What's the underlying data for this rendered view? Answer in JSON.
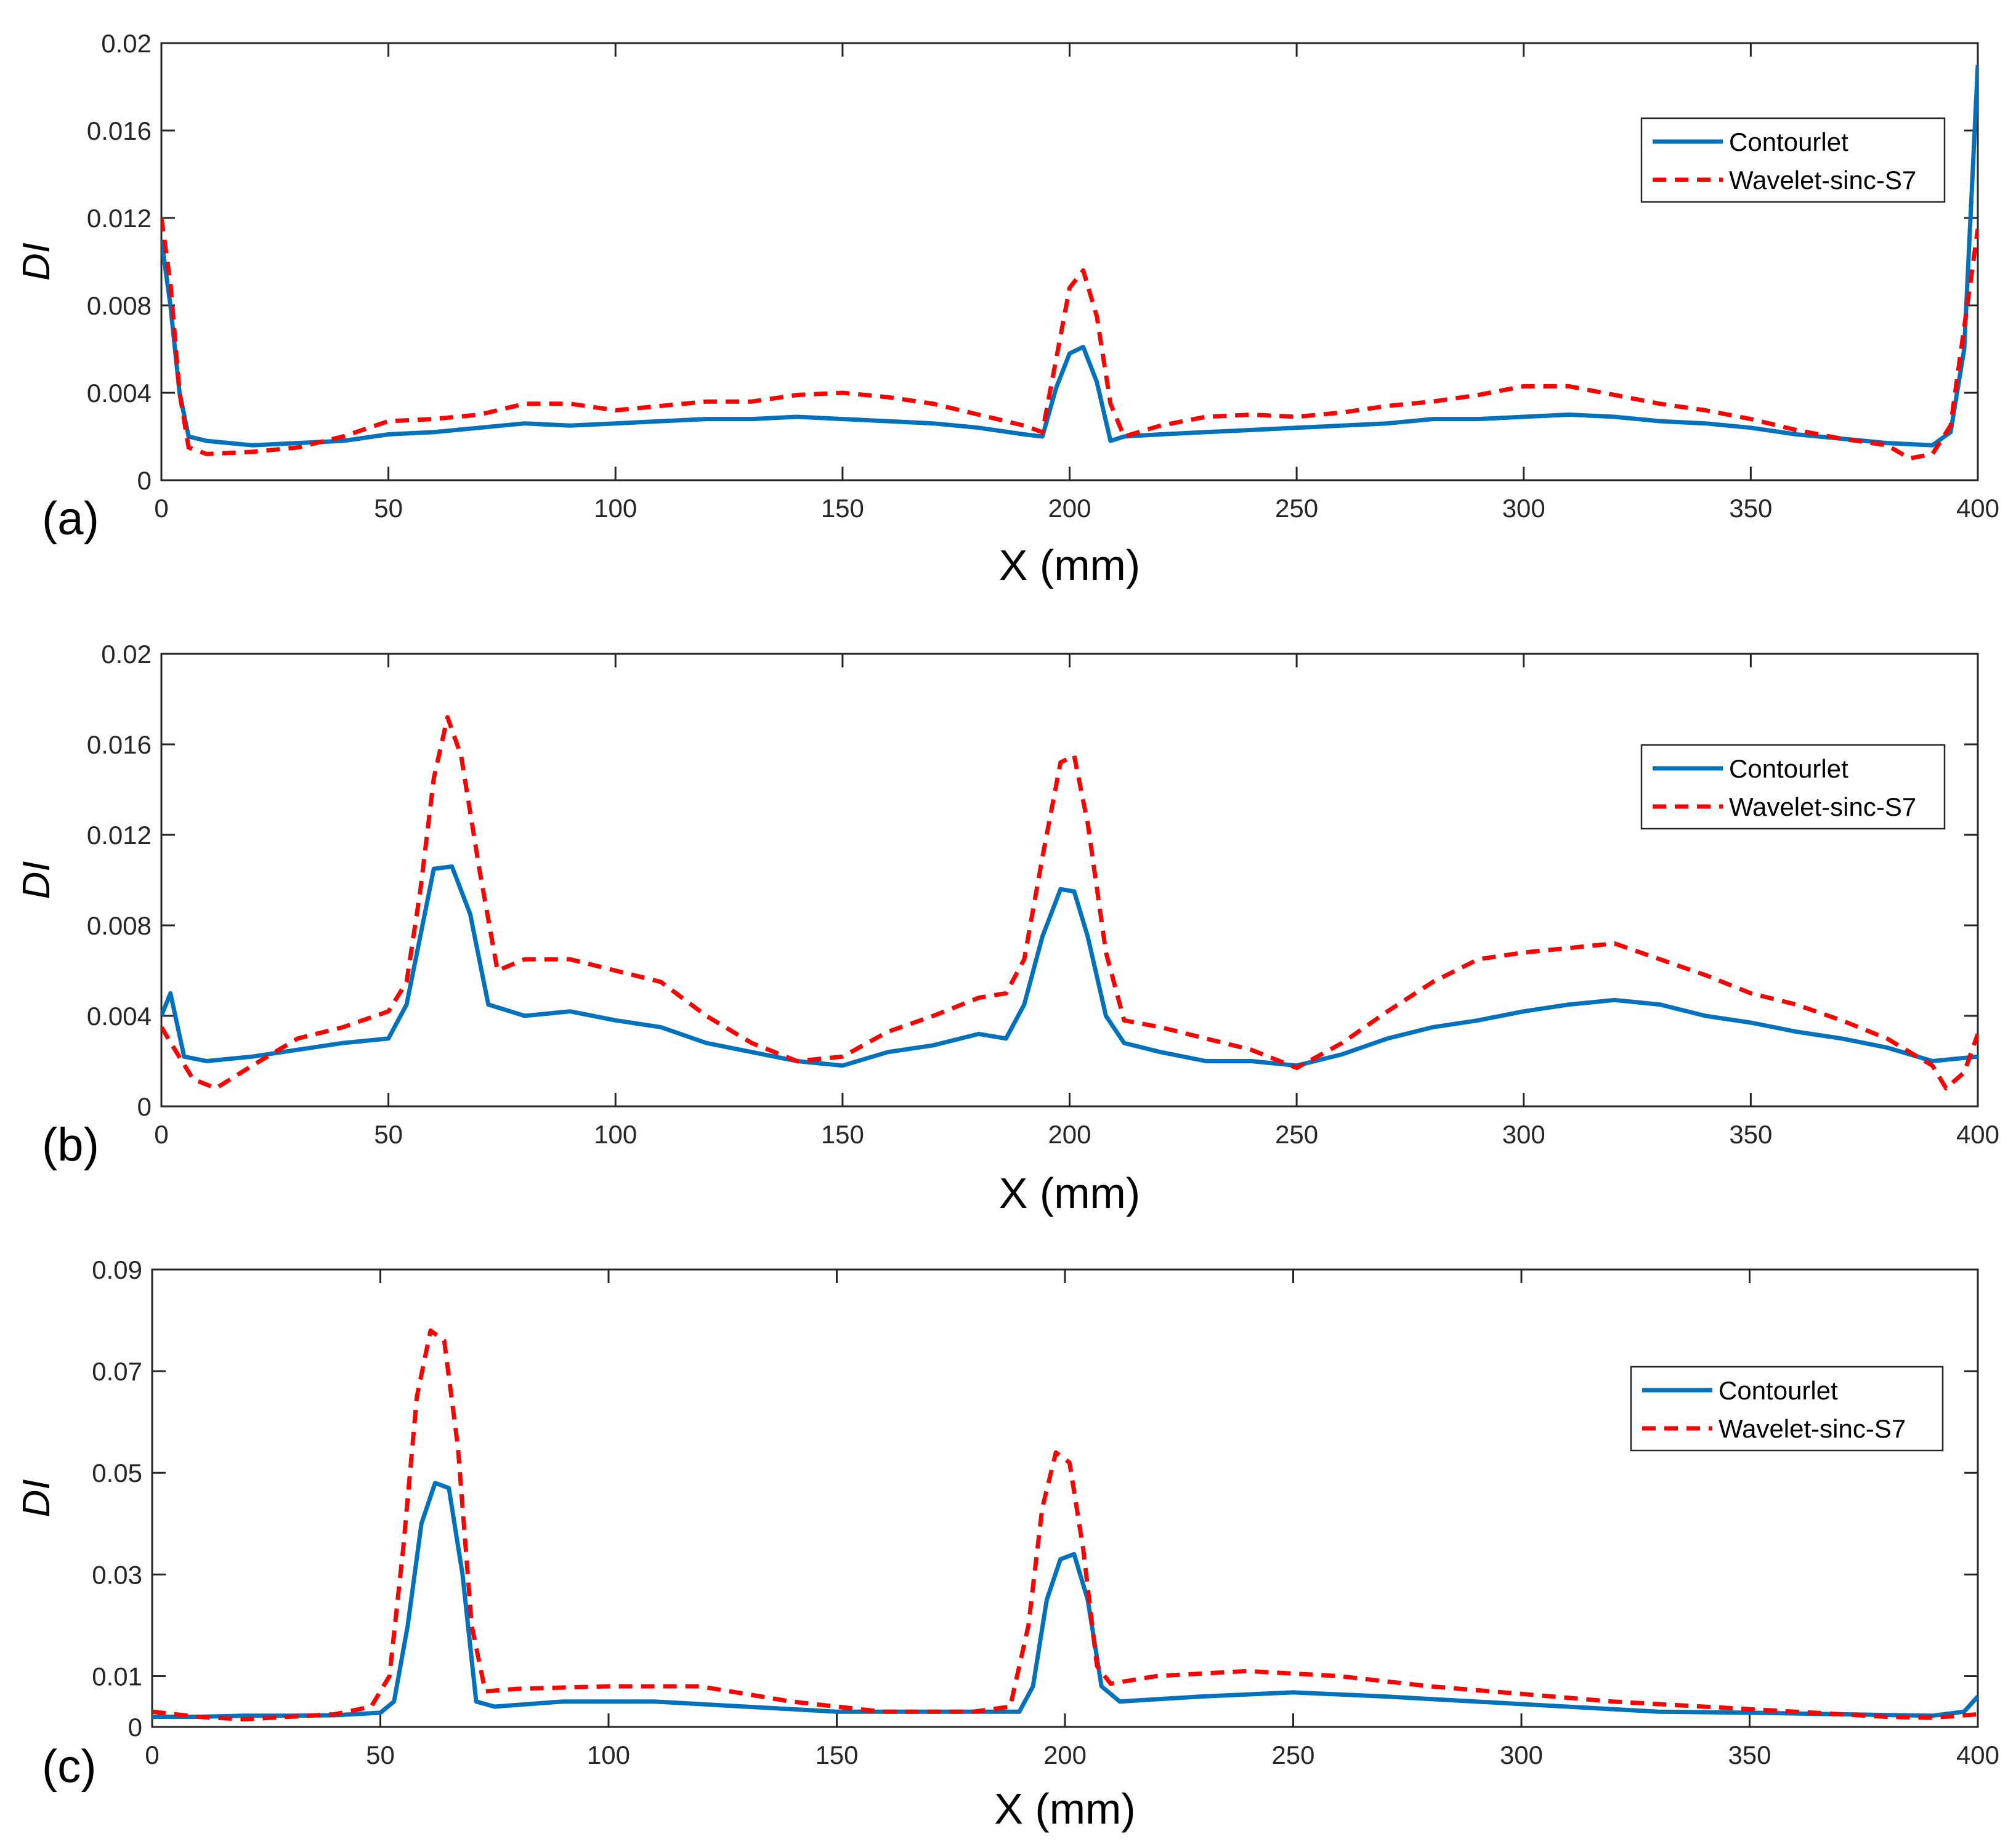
{
  "colors": {
    "contourlet": "#0072BD",
    "wavelet": "#FF0000",
    "axis": "#262626"
  },
  "chart_data": [
    {
      "type": "line",
      "panel_label": "(a)",
      "xlabel": "X (mm)",
      "ylabel": "DI",
      "xlim": [
        0,
        400
      ],
      "ylim": [
        0,
        0.02
      ],
      "xticks": [
        0,
        50,
        100,
        150,
        200,
        250,
        300,
        350,
        400
      ],
      "yticks": [
        0,
        0.004,
        0.008,
        0.012,
        0.016,
        0.02
      ],
      "ytick_labels": [
        "0",
        "0.004",
        "0.008",
        "0.012",
        "0.016",
        "0.02"
      ],
      "legend": {
        "location": "top-right",
        "entries": [
          "Contourlet",
          "Wavelet-sinc-S7"
        ]
      },
      "series": [
        {
          "name": "Contourlet",
          "style": "solid",
          "x": [
            0,
            2,
            4,
            6,
            10,
            20,
            30,
            40,
            50,
            60,
            70,
            80,
            90,
            100,
            110,
            120,
            130,
            140,
            150,
            160,
            170,
            180,
            190,
            194,
            197,
            200,
            203,
            206,
            209,
            212,
            220,
            230,
            240,
            250,
            260,
            270,
            280,
            290,
            300,
            310,
            320,
            330,
            340,
            350,
            360,
            370,
            380,
            390,
            394,
            397,
            400
          ],
          "y": [
            0.011,
            0.008,
            0.004,
            0.002,
            0.0018,
            0.0016,
            0.0017,
            0.0018,
            0.0021,
            0.0022,
            0.0024,
            0.0026,
            0.0025,
            0.0026,
            0.0027,
            0.0028,
            0.0028,
            0.0029,
            0.0028,
            0.0027,
            0.0026,
            0.0024,
            0.0021,
            0.002,
            0.0042,
            0.0058,
            0.0061,
            0.0045,
            0.0018,
            0.002,
            0.0021,
            0.0022,
            0.0023,
            0.0024,
            0.0025,
            0.0026,
            0.0028,
            0.0028,
            0.0029,
            0.003,
            0.0029,
            0.0027,
            0.0026,
            0.0024,
            0.0021,
            0.0019,
            0.0017,
            0.0016,
            0.0022,
            0.006,
            0.019
          ]
        },
        {
          "name": "Wavelet-sinc-S7",
          "style": "dashed",
          "x": [
            0,
            2,
            4,
            6,
            10,
            20,
            30,
            40,
            50,
            60,
            70,
            80,
            90,
            100,
            110,
            120,
            130,
            140,
            150,
            160,
            170,
            180,
            190,
            194,
            197,
            200,
            203,
            206,
            209,
            212,
            220,
            230,
            240,
            250,
            260,
            270,
            280,
            290,
            300,
            310,
            320,
            330,
            340,
            350,
            360,
            370,
            380,
            385,
            390,
            394,
            397,
            400
          ],
          "y": [
            0.012,
            0.009,
            0.004,
            0.0015,
            0.0012,
            0.0013,
            0.0015,
            0.002,
            0.0027,
            0.0028,
            0.003,
            0.0035,
            0.0035,
            0.0032,
            0.0034,
            0.0036,
            0.0036,
            0.0039,
            0.004,
            0.0038,
            0.0035,
            0.003,
            0.0025,
            0.0022,
            0.0055,
            0.0088,
            0.0096,
            0.0075,
            0.0035,
            0.002,
            0.0025,
            0.0029,
            0.003,
            0.0029,
            0.0031,
            0.0034,
            0.0036,
            0.0039,
            0.0043,
            0.0043,
            0.0039,
            0.0035,
            0.0032,
            0.0028,
            0.0023,
            0.0019,
            0.0016,
            0.001,
            0.0012,
            0.0025,
            0.007,
            0.0115
          ]
        }
      ]
    },
    {
      "type": "line",
      "panel_label": "(b)",
      "xlabel": "X (mm)",
      "ylabel": "DI",
      "xlim": [
        0,
        400
      ],
      "ylim": [
        0,
        0.02
      ],
      "xticks": [
        0,
        50,
        100,
        150,
        200,
        250,
        300,
        350,
        400
      ],
      "yticks": [
        0,
        0.004,
        0.008,
        0.012,
        0.016,
        0.02
      ],
      "ytick_labels": [
        "0",
        "0.004",
        "0.008",
        "0.012",
        "0.016",
        "0.02"
      ],
      "legend": {
        "location": "top-right",
        "entries": [
          "Contourlet",
          "Wavelet-sinc-S7"
        ]
      },
      "series": [
        {
          "name": "Contourlet",
          "style": "solid",
          "x": [
            0,
            2,
            5,
            10,
            20,
            30,
            40,
            50,
            54,
            57,
            60,
            64,
            68,
            72,
            80,
            90,
            100,
            110,
            120,
            130,
            140,
            150,
            160,
            170,
            180,
            186,
            190,
            194,
            198,
            201,
            204,
            208,
            212,
            220,
            230,
            240,
            250,
            260,
            270,
            280,
            290,
            300,
            310,
            320,
            330,
            340,
            350,
            360,
            370,
            380,
            390,
            400
          ],
          "y": [
            0.004,
            0.005,
            0.0022,
            0.002,
            0.0022,
            0.0025,
            0.0028,
            0.003,
            0.0045,
            0.0075,
            0.0105,
            0.0106,
            0.0085,
            0.0045,
            0.004,
            0.0042,
            0.0038,
            0.0035,
            0.0028,
            0.0024,
            0.002,
            0.0018,
            0.0024,
            0.0027,
            0.0032,
            0.003,
            0.0045,
            0.0075,
            0.0096,
            0.0095,
            0.0075,
            0.004,
            0.0028,
            0.0024,
            0.002,
            0.002,
            0.0018,
            0.0023,
            0.003,
            0.0035,
            0.0038,
            0.0042,
            0.0045,
            0.0047,
            0.0045,
            0.004,
            0.0037,
            0.0033,
            0.003,
            0.0026,
            0.002,
            0.0022
          ]
        },
        {
          "name": "Wavelet-sinc-S7",
          "style": "dashed",
          "x": [
            0,
            3,
            7,
            12,
            20,
            30,
            40,
            50,
            54,
            57,
            60,
            63,
            66,
            70,
            74,
            80,
            90,
            100,
            110,
            120,
            130,
            140,
            150,
            160,
            170,
            180,
            186,
            190,
            194,
            198,
            201,
            204,
            208,
            212,
            220,
            230,
            240,
            250,
            260,
            270,
            280,
            290,
            300,
            310,
            320,
            330,
            340,
            350,
            360,
            370,
            380,
            390,
            393,
            397,
            400
          ],
          "y": [
            0.0035,
            0.0025,
            0.0012,
            0.0008,
            0.0018,
            0.003,
            0.0035,
            0.0042,
            0.0055,
            0.0095,
            0.0145,
            0.0172,
            0.0155,
            0.0105,
            0.006,
            0.0065,
            0.0065,
            0.006,
            0.0055,
            0.004,
            0.0028,
            0.002,
            0.0022,
            0.0033,
            0.004,
            0.0048,
            0.005,
            0.0065,
            0.011,
            0.0152,
            0.0155,
            0.0125,
            0.0068,
            0.0038,
            0.0035,
            0.003,
            0.0025,
            0.0017,
            0.0028,
            0.0042,
            0.0055,
            0.0065,
            0.0068,
            0.007,
            0.0072,
            0.0065,
            0.0058,
            0.005,
            0.0045,
            0.0038,
            0.003,
            0.0018,
            0.0008,
            0.0015,
            0.0032
          ]
        }
      ]
    },
    {
      "type": "line",
      "panel_label": "(c)",
      "xlabel": "X (mm)",
      "ylabel": "DI",
      "xlim": [
        0,
        400
      ],
      "ylim": [
        0,
        0.09
      ],
      "xticks": [
        0,
        50,
        100,
        150,
        200,
        250,
        300,
        350,
        400
      ],
      "yticks": [
        0,
        0.01,
        0.03,
        0.05,
        0.07,
        0.09
      ],
      "ytick_labels": [
        "0",
        "0.01",
        "0.03",
        "0.05",
        "0.07",
        "0.09"
      ],
      "legend": {
        "location": "top-right",
        "entries": [
          "Contourlet",
          "Wavelet-sinc-S7"
        ]
      },
      "series": [
        {
          "name": "Contourlet",
          "style": "solid",
          "x": [
            0,
            10,
            20,
            30,
            40,
            50,
            53,
            56,
            59,
            62,
            65,
            68,
            71,
            75,
            90,
            110,
            130,
            150,
            170,
            190,
            193,
            196,
            199,
            202,
            205,
            208,
            212,
            230,
            250,
            270,
            290,
            310,
            330,
            350,
            370,
            390,
            397,
            400
          ],
          "y": [
            0.002,
            0.002,
            0.0022,
            0.0022,
            0.0023,
            0.0028,
            0.005,
            0.02,
            0.04,
            0.048,
            0.047,
            0.03,
            0.005,
            0.004,
            0.005,
            0.005,
            0.004,
            0.003,
            0.003,
            0.003,
            0.008,
            0.025,
            0.033,
            0.034,
            0.025,
            0.008,
            0.005,
            0.006,
            0.0068,
            0.006,
            0.005,
            0.004,
            0.003,
            0.0028,
            0.0025,
            0.0022,
            0.003,
            0.006
          ]
        },
        {
          "name": "Wavelet-sinc-S7",
          "style": "dashed",
          "x": [
            0,
            10,
            20,
            30,
            40,
            48,
            52,
            55,
            58,
            61,
            64,
            67,
            70,
            73,
            80,
            100,
            120,
            140,
            160,
            180,
            188,
            192,
            195,
            198,
            201,
            204,
            207,
            210,
            220,
            240,
            260,
            280,
            300,
            320,
            340,
            360,
            380,
            390,
            400
          ],
          "y": [
            0.003,
            0.002,
            0.0015,
            0.002,
            0.0025,
            0.004,
            0.01,
            0.035,
            0.065,
            0.078,
            0.076,
            0.055,
            0.02,
            0.007,
            0.0075,
            0.008,
            0.008,
            0.005,
            0.003,
            0.003,
            0.004,
            0.02,
            0.043,
            0.054,
            0.052,
            0.035,
            0.012,
            0.0085,
            0.01,
            0.011,
            0.01,
            0.008,
            0.0065,
            0.005,
            0.004,
            0.003,
            0.002,
            0.0018,
            0.0025
          ]
        }
      ]
    }
  ]
}
